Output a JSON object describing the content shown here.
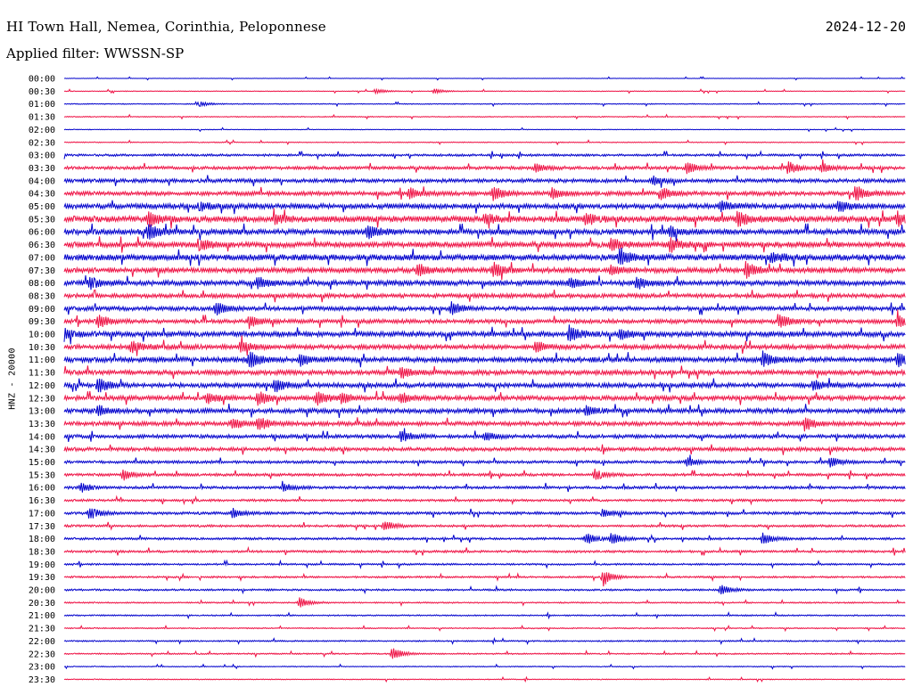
{
  "header": {
    "station": "HI Town Hall, Nemea, Corinthia, Peloponnese",
    "date": "2024-12-20",
    "filter": "Applied filter: WWSSN-SP"
  },
  "chart_data": {
    "type": "line",
    "title": "HI Town Hall, Nemea, Corinthia, Peloponnese",
    "ylabel": "HNZ - 20000",
    "xlabel": "",
    "trace_colors": [
      "#0000cc",
      "#ee1144"
    ],
    "categories": [
      "00:00",
      "00:30",
      "01:00",
      "01:30",
      "02:00",
      "02:30",
      "03:00",
      "03:30",
      "04:00",
      "04:30",
      "05:00",
      "05:30",
      "06:00",
      "06:30",
      "07:00",
      "07:30",
      "08:00",
      "08:30",
      "09:00",
      "09:30",
      "10:00",
      "10:30",
      "11:00",
      "11:30",
      "12:00",
      "12:30",
      "13:00",
      "13:30",
      "14:00",
      "14:30",
      "15:00",
      "15:30",
      "16:00",
      "16:30",
      "17:00",
      "17:30",
      "18:00",
      "18:30",
      "19:00",
      "19:30",
      "20:00",
      "20:30",
      "21:00",
      "21:30",
      "22:00",
      "22:30",
      "23:00",
      "23:30"
    ],
    "noise_level": [
      0.2,
      0.3,
      0.4,
      0.4,
      0.3,
      0.4,
      1.0,
      1.4,
      1.6,
      1.8,
      2.2,
      2.6,
      2.4,
      2.4,
      2.6,
      2.2,
      2.2,
      1.8,
      1.8,
      1.8,
      2.2,
      2.0,
      2.2,
      2.0,
      2.0,
      2.0,
      2.0,
      1.8,
      1.6,
      1.6,
      1.2,
      1.2,
      1.2,
      1.0,
      1.2,
      1.0,
      1.0,
      1.0,
      0.8,
      0.8,
      0.8,
      0.6,
      0.6,
      0.5,
      0.6,
      0.6,
      0.4,
      0.4
    ],
    "events": [
      {
        "row": 1,
        "t": 0.37,
        "amp": 3
      },
      {
        "row": 1,
        "t": 0.44,
        "amp": 3
      },
      {
        "row": 2,
        "t": 0.16,
        "amp": 3
      },
      {
        "row": 7,
        "t": 0.56,
        "amp": 5
      },
      {
        "row": 7,
        "t": 0.74,
        "amp": 7
      },
      {
        "row": 7,
        "t": 0.86,
        "amp": 7
      },
      {
        "row": 7,
        "t": 0.9,
        "amp": 5
      },
      {
        "row": 8,
        "t": 0.7,
        "amp": 4
      },
      {
        "row": 9,
        "t": 0.41,
        "amp": 7
      },
      {
        "row": 9,
        "t": 0.51,
        "amp": 9
      },
      {
        "row": 9,
        "t": 0.58,
        "amp": 6
      },
      {
        "row": 9,
        "t": 0.71,
        "amp": 7
      },
      {
        "row": 9,
        "t": 0.94,
        "amp": 10
      },
      {
        "row": 10,
        "t": 0.16,
        "amp": 5
      },
      {
        "row": 10,
        "t": 0.78,
        "amp": 6
      },
      {
        "row": 10,
        "t": 0.92,
        "amp": 6
      },
      {
        "row": 11,
        "t": 0.1,
        "amp": 8
      },
      {
        "row": 11,
        "t": 0.25,
        "amp": 5
      },
      {
        "row": 11,
        "t": 0.5,
        "amp": 6
      },
      {
        "row": 11,
        "t": 0.62,
        "amp": 6
      },
      {
        "row": 11,
        "t": 0.8,
        "amp": 9
      },
      {
        "row": 11,
        "t": 0.99,
        "amp": 7
      },
      {
        "row": 12,
        "t": 0.1,
        "amp": 9
      },
      {
        "row": 12,
        "t": 0.36,
        "amp": 8
      },
      {
        "row": 12,
        "t": 0.72,
        "amp": 6
      },
      {
        "row": 13,
        "t": 0.16,
        "amp": 7
      },
      {
        "row": 13,
        "t": 0.65,
        "amp": 7
      },
      {
        "row": 13,
        "t": 0.72,
        "amp": 8
      },
      {
        "row": 14,
        "t": 0.66,
        "amp": 10
      },
      {
        "row": 14,
        "t": 0.84,
        "amp": 5
      },
      {
        "row": 15,
        "t": 0.42,
        "amp": 8
      },
      {
        "row": 15,
        "t": 0.51,
        "amp": 8
      },
      {
        "row": 15,
        "t": 0.65,
        "amp": 5
      },
      {
        "row": 15,
        "t": 0.81,
        "amp": 9
      },
      {
        "row": 16,
        "t": 0.03,
        "amp": 7
      },
      {
        "row": 16,
        "t": 0.23,
        "amp": 6
      },
      {
        "row": 16,
        "t": 0.6,
        "amp": 6
      },
      {
        "row": 16,
        "t": 0.68,
        "amp": 7
      },
      {
        "row": 18,
        "t": 0.18,
        "amp": 8
      },
      {
        "row": 18,
        "t": 0.46,
        "amp": 7
      },
      {
        "row": 19,
        "t": 0.04,
        "amp": 8
      },
      {
        "row": 19,
        "t": 0.22,
        "amp": 7
      },
      {
        "row": 19,
        "t": 0.85,
        "amp": 8
      },
      {
        "row": 19,
        "t": 0.99,
        "amp": 7
      },
      {
        "row": 20,
        "t": 0.0,
        "amp": 7
      },
      {
        "row": 20,
        "t": 0.6,
        "amp": 9
      },
      {
        "row": 20,
        "t": 0.66,
        "amp": 6
      },
      {
        "row": 21,
        "t": 0.08,
        "amp": 7
      },
      {
        "row": 21,
        "t": 0.21,
        "amp": 7
      },
      {
        "row": 21,
        "t": 0.56,
        "amp": 6
      },
      {
        "row": 22,
        "t": 0.22,
        "amp": 10
      },
      {
        "row": 22,
        "t": 0.28,
        "amp": 6
      },
      {
        "row": 22,
        "t": 0.83,
        "amp": 8
      },
      {
        "row": 22,
        "t": 0.99,
        "amp": 8
      },
      {
        "row": 23,
        "t": 0.4,
        "amp": 6
      },
      {
        "row": 24,
        "t": 0.04,
        "amp": 9
      },
      {
        "row": 24,
        "t": 0.25,
        "amp": 8
      },
      {
        "row": 24,
        "t": 0.89,
        "amp": 5
      },
      {
        "row": 25,
        "t": 0.17,
        "amp": 6
      },
      {
        "row": 25,
        "t": 0.23,
        "amp": 8
      },
      {
        "row": 25,
        "t": 0.3,
        "amp": 8
      },
      {
        "row": 25,
        "t": 0.33,
        "amp": 6
      },
      {
        "row": 25,
        "t": 0.4,
        "amp": 6
      },
      {
        "row": 26,
        "t": 0.04,
        "amp": 6
      },
      {
        "row": 26,
        "t": 0.62,
        "amp": 5
      },
      {
        "row": 27,
        "t": 0.2,
        "amp": 6
      },
      {
        "row": 27,
        "t": 0.23,
        "amp": 8
      },
      {
        "row": 27,
        "t": 0.88,
        "amp": 8
      },
      {
        "row": 28,
        "t": 0.4,
        "amp": 7
      },
      {
        "row": 28,
        "t": 0.5,
        "amp": 5
      },
      {
        "row": 30,
        "t": 0.74,
        "amp": 5
      },
      {
        "row": 30,
        "t": 0.91,
        "amp": 6
      },
      {
        "row": 31,
        "t": 0.07,
        "amp": 6
      },
      {
        "row": 31,
        "t": 0.63,
        "amp": 6
      },
      {
        "row": 32,
        "t": 0.02,
        "amp": 6
      },
      {
        "row": 32,
        "t": 0.26,
        "amp": 5
      },
      {
        "row": 34,
        "t": 0.03,
        "amp": 7
      },
      {
        "row": 34,
        "t": 0.2,
        "amp": 6
      },
      {
        "row": 34,
        "t": 0.64,
        "amp": 5
      },
      {
        "row": 35,
        "t": 0.38,
        "amp": 6
      },
      {
        "row": 36,
        "t": 0.62,
        "amp": 7
      },
      {
        "row": 36,
        "t": 0.65,
        "amp": 7
      },
      {
        "row": 36,
        "t": 0.83,
        "amp": 7
      },
      {
        "row": 39,
        "t": 0.64,
        "amp": 8
      },
      {
        "row": 40,
        "t": 0.78,
        "amp": 6
      },
      {
        "row": 41,
        "t": 0.28,
        "amp": 6
      },
      {
        "row": 45,
        "t": 0.39,
        "amp": 8
      }
    ]
  }
}
